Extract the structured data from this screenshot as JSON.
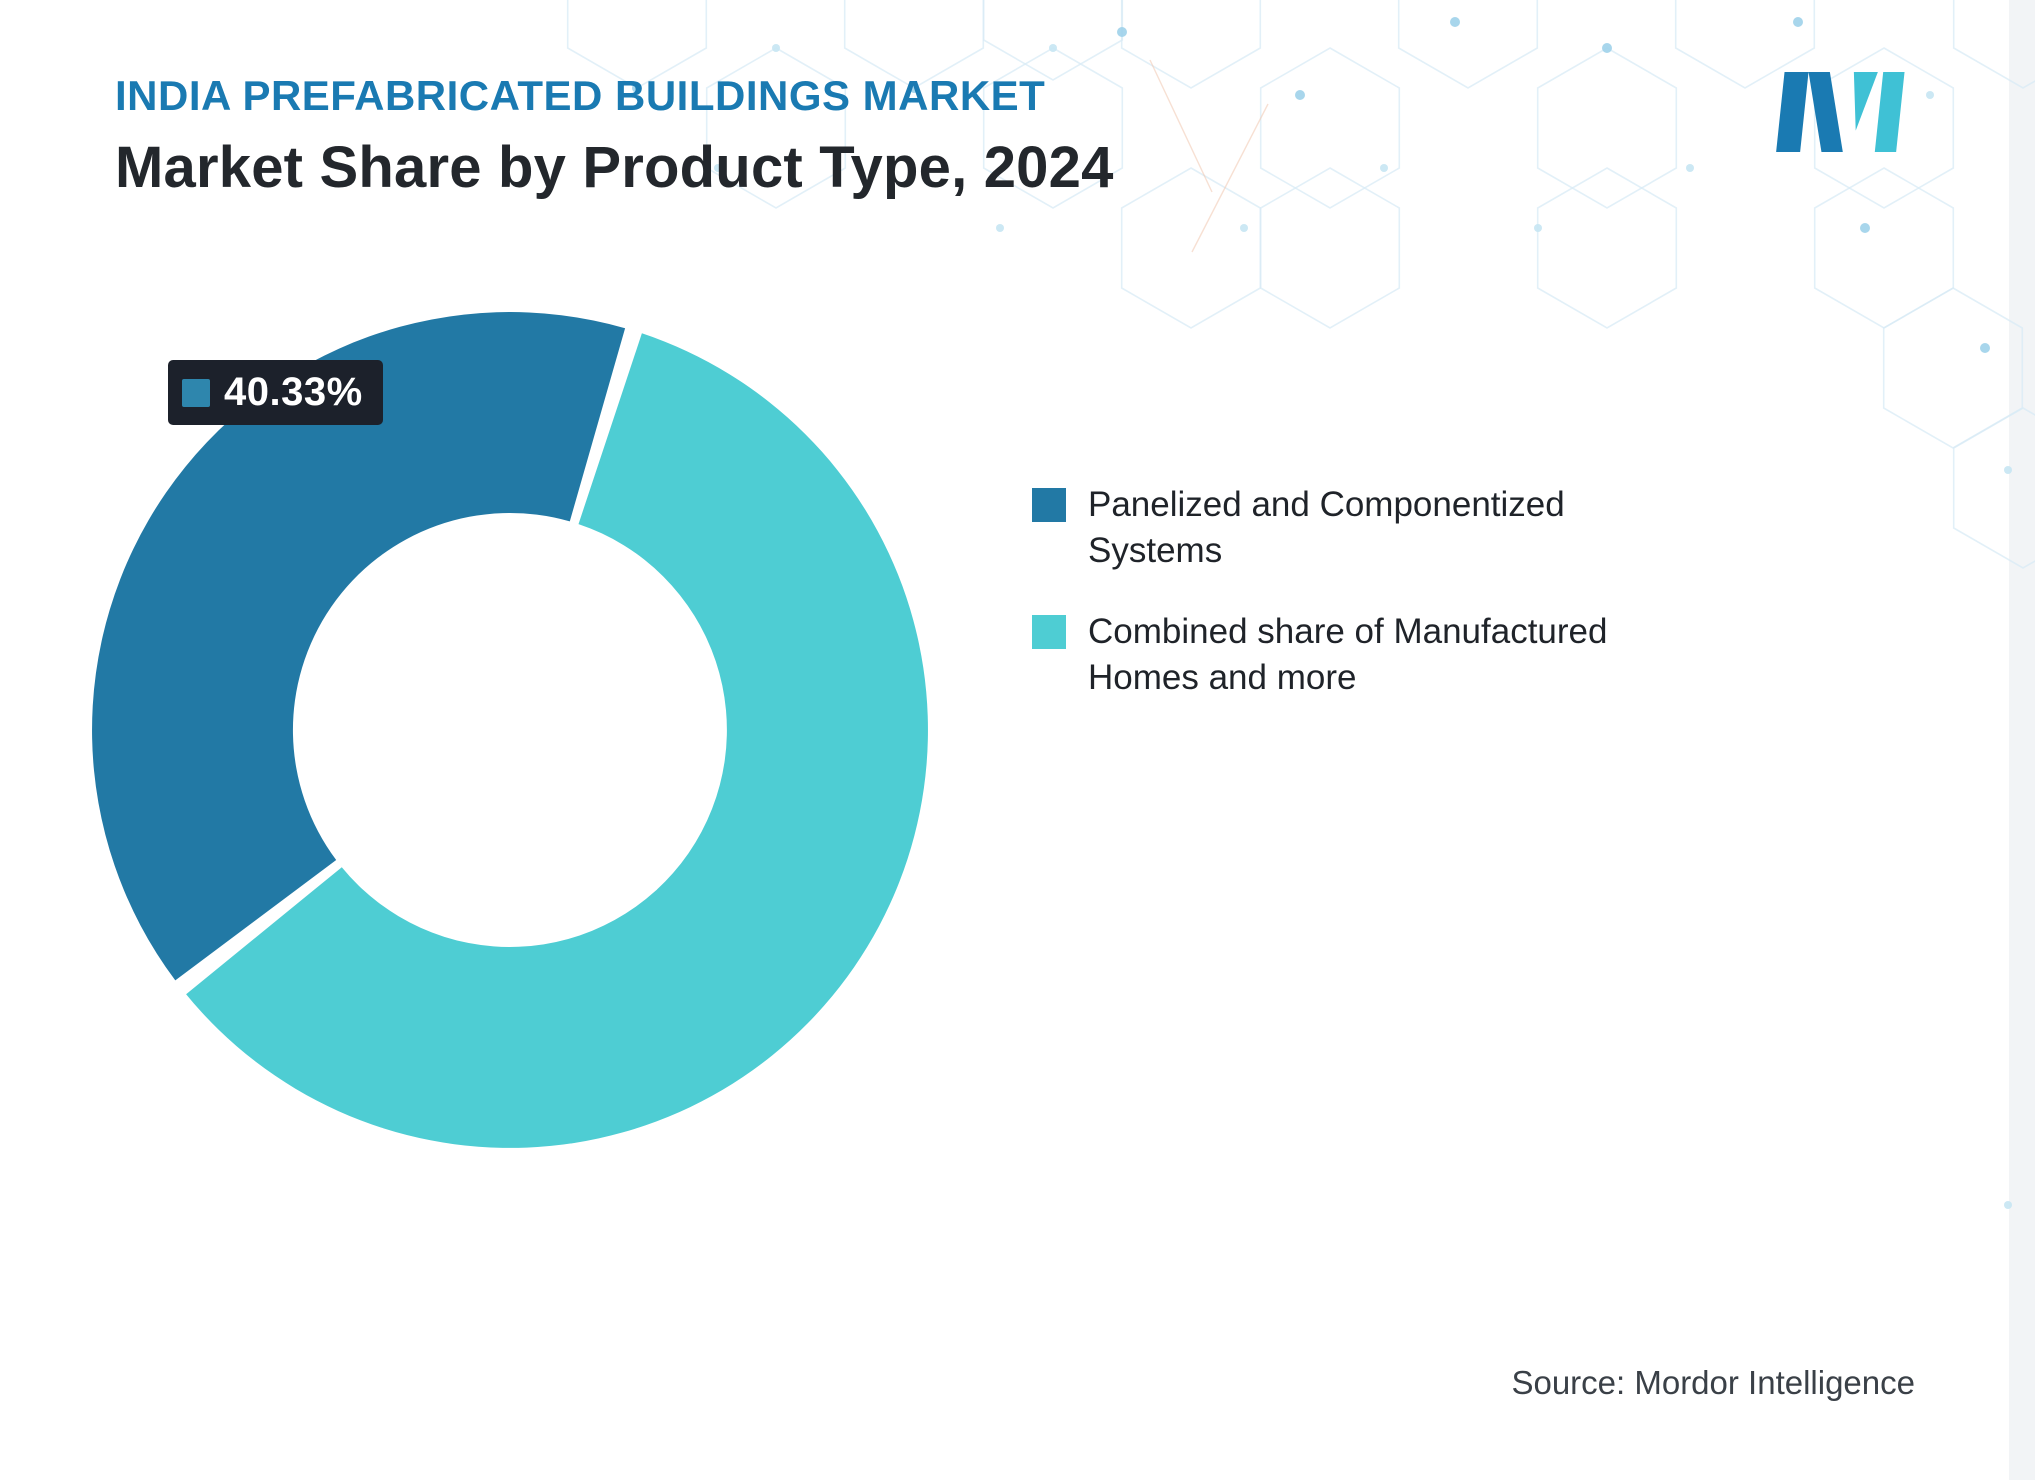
{
  "header": {
    "title": "INDIA PREFABRICATED BUILDINGS MARKET",
    "subtitle": "Market Share by Product Type, 2024"
  },
  "logo": {
    "name": "Mordor Intelligence",
    "blue": "#1a7ab2",
    "teal": "#3fc1d5"
  },
  "colors": {
    "title": "#1a7ab2",
    "badge_bg": "#1c212b"
  },
  "chart_data": {
    "type": "pie",
    "title": "Market Share by Product Type, 2024",
    "series": [
      {
        "name": "Panelized and Componentized Systems",
        "value": 40.33,
        "color": "#2279a5"
      },
      {
        "name": "Combined share of Manufactured Homes and more",
        "value": 59.67,
        "color": "#4ecdd3"
      }
    ],
    "data_label": {
      "text": "40.33%",
      "swatch": "#2e86ad"
    },
    "layout": {
      "donut": true,
      "inner_ratio": 0.52,
      "start_angle": 232,
      "pad_angle": 2.4,
      "legend_position": "right"
    }
  },
  "footer": {
    "source": "Source: Mordor Intelligence"
  }
}
